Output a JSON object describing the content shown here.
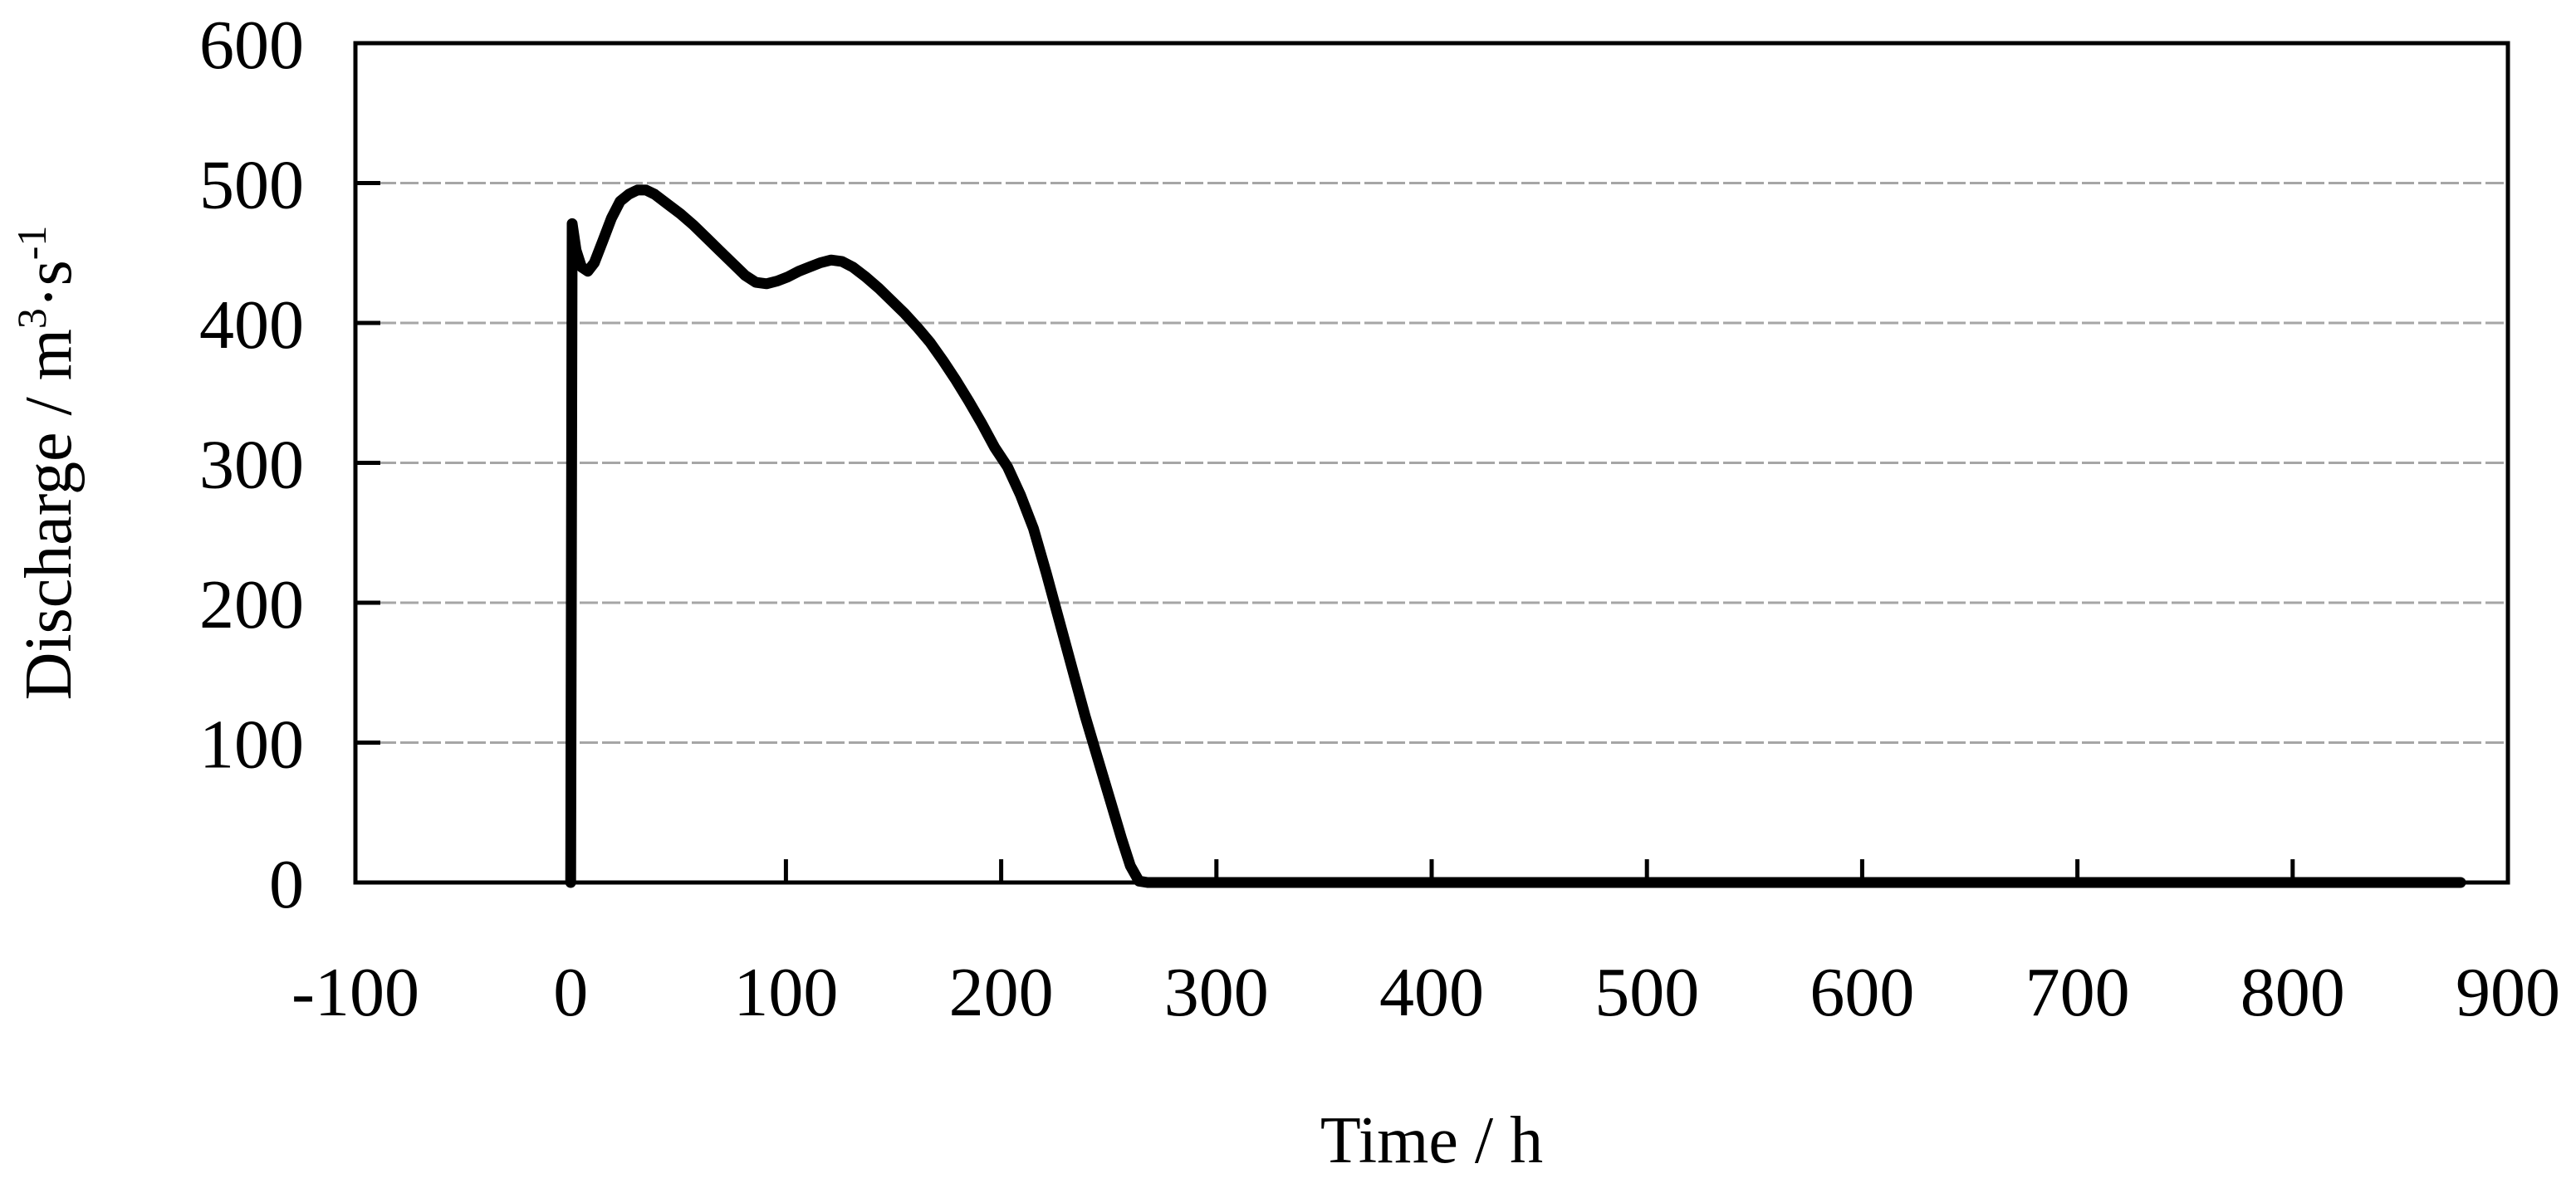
{
  "chart_data": {
    "type": "line",
    "title": "",
    "xlabel": "Time / h",
    "ylabel": "Discharge / m3·s-1",
    "ylabel_parts": [
      {
        "t": "Discharge / m",
        "sup": false
      },
      {
        "t": "3",
        "sup": true
      },
      {
        "t": "·s",
        "sup": false
      },
      {
        "t": "-1",
        "sup": true
      }
    ],
    "xlim": [
      -100,
      900
    ],
    "ylim": [
      0,
      600
    ],
    "xticks": [
      -100,
      0,
      100,
      200,
      300,
      400,
      500,
      600,
      700,
      800,
      900
    ],
    "yticks": [
      0,
      100,
      200,
      300,
      400,
      500,
      600
    ],
    "grid": {
      "horizontal": true,
      "vertical": false,
      "color": "#a6a6a6",
      "dash": "22 5"
    },
    "legend_position": "none",
    "axis_color": "#000000",
    "series": [
      {
        "name": "discharge-hydrograph",
        "color": "#000000",
        "line_width": 13,
        "points": [
          [
            0,
            0
          ],
          [
            0.7,
            471
          ],
          [
            2.5,
            452
          ],
          [
            5,
            440
          ],
          [
            8,
            437
          ],
          [
            11,
            443
          ],
          [
            15,
            459
          ],
          [
            19,
            475
          ],
          [
            23,
            487
          ],
          [
            27,
            492
          ],
          [
            31,
            495
          ],
          [
            35,
            495
          ],
          [
            39,
            492
          ],
          [
            45,
            485
          ],
          [
            51,
            478
          ],
          [
            57,
            470
          ],
          [
            63,
            461
          ],
          [
            69,
            452
          ],
          [
            75,
            443
          ],
          [
            81,
            434
          ],
          [
            86,
            429
          ],
          [
            91,
            428
          ],
          [
            96,
            430
          ],
          [
            101,
            433
          ],
          [
            106,
            437
          ],
          [
            111,
            440
          ],
          [
            116,
            443
          ],
          [
            121,
            445
          ],
          [
            126,
            444
          ],
          [
            131,
            440
          ],
          [
            137,
            433
          ],
          [
            143,
            425
          ],
          [
            149,
            416
          ],
          [
            155,
            407
          ],
          [
            161,
            397
          ],
          [
            167,
            386
          ],
          [
            173,
            373
          ],
          [
            179,
            359
          ],
          [
            185,
            344
          ],
          [
            191,
            328
          ],
          [
            197,
            311
          ],
          [
            203,
            297
          ],
          [
            209,
            277
          ],
          [
            215,
            253
          ],
          [
            221,
            221
          ],
          [
            227,
            187
          ],
          [
            233,
            153
          ],
          [
            239,
            119
          ],
          [
            245,
            88
          ],
          [
            251,
            57
          ],
          [
            256,
            31
          ],
          [
            260,
            12
          ],
          [
            264,
            1
          ],
          [
            268,
            0
          ],
          [
            300,
            0
          ],
          [
            350,
            0
          ],
          [
            400,
            0
          ],
          [
            450,
            0
          ],
          [
            500,
            0
          ],
          [
            550,
            0
          ],
          [
            600,
            0
          ],
          [
            650,
            0
          ],
          [
            700,
            0
          ],
          [
            750,
            0
          ],
          [
            800,
            0
          ],
          [
            850,
            0
          ],
          [
            878,
            0
          ]
        ]
      }
    ]
  }
}
